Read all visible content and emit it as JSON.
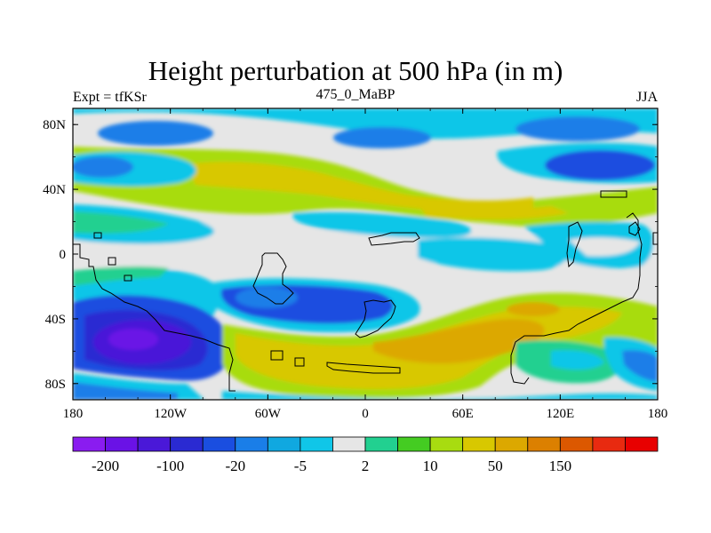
{
  "chart_data": {
    "type": "heatmap",
    "title": "Height perturbation at 500 hPa (in m)",
    "left_string": "Expt = tfKSr",
    "center_string": "475_0_MaBP",
    "right_string": "JJA",
    "x_ticks": [
      {
        "value": -180,
        "label": "180"
      },
      {
        "value": -120,
        "label": "120W"
      },
      {
        "value": -60,
        "label": "60W"
      },
      {
        "value": 0,
        "label": "0"
      },
      {
        "value": 60,
        "label": "60E"
      },
      {
        "value": 120,
        "label": "120E"
      },
      {
        "value": 180,
        "label": "180"
      }
    ],
    "y_ticks": [
      {
        "value": 80,
        "label": "80N"
      },
      {
        "value": 40,
        "label": "40N"
      },
      {
        "value": 0,
        "label": "0"
      },
      {
        "value": -40,
        "label": "40S"
      },
      {
        "value": -80,
        "label": "80S"
      }
    ],
    "xlim": [
      -180,
      180
    ],
    "ylim": [
      -90,
      90
    ],
    "colorbar": {
      "colors": [
        "#8a1cf0",
        "#6a12e6",
        "#4a18d8",
        "#2a2ad2",
        "#1a4ee0",
        "#1a7ee8",
        "#10a8e0",
        "#10c6e8",
        "#e6e6e6",
        "#22d090",
        "#44cc22",
        "#a8dc10",
        "#d8c800",
        "#dca800",
        "#dc8000",
        "#dc5800",
        "#e82a10",
        "#e80000"
      ],
      "labels": [
        {
          "after_box": 1,
          "text": "-200"
        },
        {
          "after_box": 3,
          "text": "-100"
        },
        {
          "after_box": 5,
          "text": "-20"
        },
        {
          "after_box": 7,
          "text": "-5"
        },
        {
          "after_box": 9,
          "text": "2"
        },
        {
          "after_box": 11,
          "text": "10"
        },
        {
          "after_box": 13,
          "text": "50"
        },
        {
          "after_box": 15,
          "text": "150"
        }
      ]
    }
  }
}
